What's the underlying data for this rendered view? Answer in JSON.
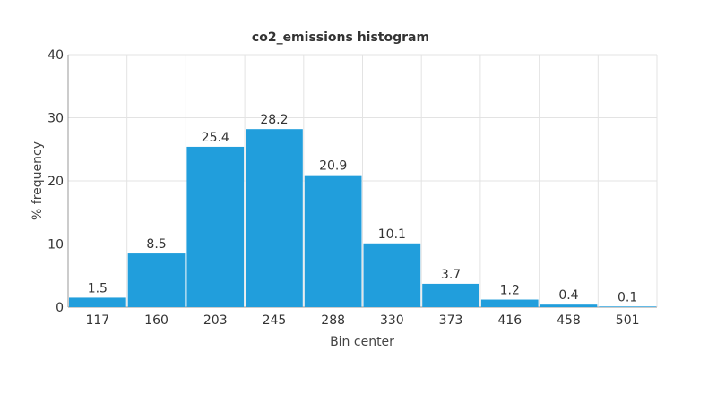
{
  "chart_data": {
    "type": "bar",
    "title": "co2_emissions histogram",
    "xlabel": "Bin center",
    "ylabel": "% frequency",
    "categories": [
      "117",
      "160",
      "203",
      "245",
      "288",
      "330",
      "373",
      "416",
      "458",
      "501"
    ],
    "values": [
      1.5,
      8.5,
      25.4,
      28.2,
      20.9,
      10.1,
      3.7,
      1.2,
      0.4,
      0.1
    ],
    "data_labels": [
      "1.5",
      "8.5",
      "25.4",
      "28.2",
      "20.9",
      "10.1",
      "3.7",
      "1.2",
      "0.4",
      "0.1"
    ],
    "ylim": [
      0,
      40
    ],
    "yticks": [
      "0",
      "10",
      "20",
      "30",
      "40"
    ],
    "grid": true,
    "bar_color": "#219EDC"
  }
}
